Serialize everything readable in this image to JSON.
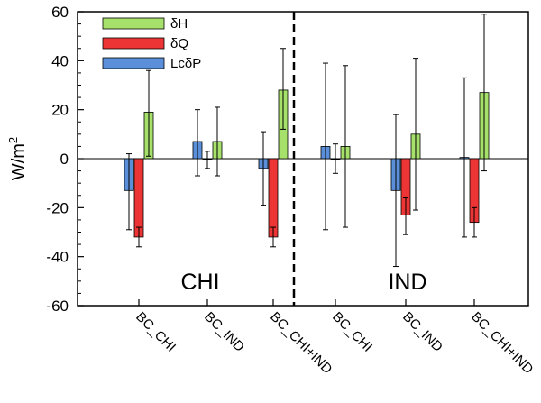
{
  "chart_data": {
    "type": "bar",
    "ylabel_base": "W/m",
    "ylabel_sup": "2",
    "ylim": [
      -60,
      60
    ],
    "yticks": [
      -60,
      -40,
      -20,
      0,
      20,
      40,
      60
    ],
    "grid": false,
    "legend_position": "top-left",
    "panels": [
      {
        "label": "CHI",
        "categories": [
          "BC_CHI",
          "BC_IND",
          "BC_CHI+IND"
        ]
      },
      {
        "label": "IND",
        "categories": [
          "BC_CHI",
          "BC_IND",
          "BC_CHI+IND"
        ]
      }
    ],
    "series": [
      {
        "name": "LcδP",
        "color": "#5b8fd9",
        "values": [
          -13,
          7,
          -4,
          5,
          -13,
          0.5
        ],
        "err_low": [
          -29,
          -7,
          -19,
          -29,
          -44,
          -32
        ],
        "err_high": [
          2,
          20,
          11,
          39,
          18,
          33
        ]
      },
      {
        "name": "δQ",
        "color": "#ee3535",
        "values": [
          -32,
          0,
          -32,
          0,
          -23,
          -26
        ],
        "err_low": [
          -36,
          -4,
          -36,
          -6,
          -31,
          -32
        ],
        "err_high": [
          -28,
          3,
          -28,
          6,
          -16,
          -20
        ]
      },
      {
        "name": "δH",
        "color": "#a6e26b",
        "values": [
          19,
          7,
          28,
          5,
          10,
          27
        ],
        "err_low": [
          1,
          -7,
          12,
          -28,
          -21,
          -5
        ],
        "err_high": [
          36,
          21,
          45,
          38,
          41,
          59
        ]
      }
    ],
    "legend_order": [
      "δH",
      "δQ",
      "LcδP"
    ]
  }
}
